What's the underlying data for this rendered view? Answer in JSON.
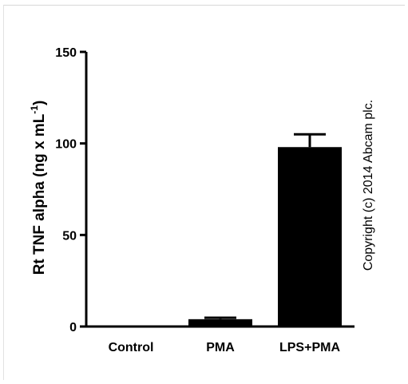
{
  "chart_data": {
    "type": "bar",
    "categories": [
      "Control",
      "PMA",
      "LPS+PMA"
    ],
    "values": [
      0,
      4,
      98
    ],
    "errors": [
      0,
      0.8,
      7
    ],
    "ylabel": "Rt TNF alpha (ng x mL",
    "ylabel_exp": "-1",
    "ylabel_tail": ")",
    "ylim": [
      0,
      150
    ],
    "yticks": [
      0,
      50,
      100,
      150
    ],
    "ytick_labels": [
      "0",
      "50",
      "100",
      "150"
    ],
    "grid": false,
    "bar_color": "#000000",
    "annotation": "Copyright (c) 2014 Abcam plc."
  }
}
